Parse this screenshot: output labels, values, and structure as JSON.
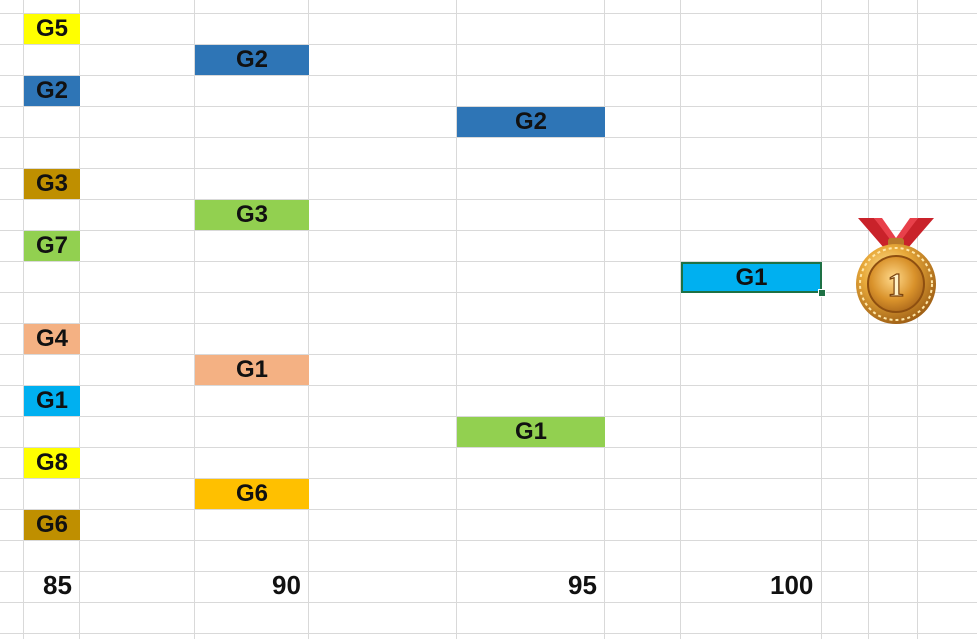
{
  "cells": {
    "c1": {
      "label": "G5",
      "color": "#FFFF00"
    },
    "c2": {
      "label": "G2",
      "color": "#2E75B6"
    },
    "c3": {
      "label": "G2",
      "color": "#2E75B6"
    },
    "c4": {
      "label": "G2",
      "color": "#2E75B6"
    },
    "c5": {
      "label": "G3",
      "color": "#BF8F00"
    },
    "c6": {
      "label": "G3",
      "color": "#92D050"
    },
    "c7": {
      "label": "G7",
      "color": "#92D050"
    },
    "c8": {
      "label": "G1",
      "color": "#00B0F0"
    },
    "c9": {
      "label": "G4",
      "color": "#F4B183"
    },
    "c10": {
      "label": "G1",
      "color": "#F4B183"
    },
    "c11": {
      "label": "G1",
      "color": "#00B0F0"
    },
    "c12": {
      "label": "G1",
      "color": "#92D050"
    },
    "c13": {
      "label": "G8",
      "color": "#FFFF00"
    },
    "c14": {
      "label": "G6",
      "color": "#FFC000"
    },
    "c15": {
      "label": "G6",
      "color": "#BF8F00"
    }
  },
  "axis": {
    "t85": "85",
    "t90": "90",
    "t95": "95",
    "t100": "100"
  },
  "medal": {
    "numeral": "1",
    "icon": "gold-medal-icon"
  }
}
